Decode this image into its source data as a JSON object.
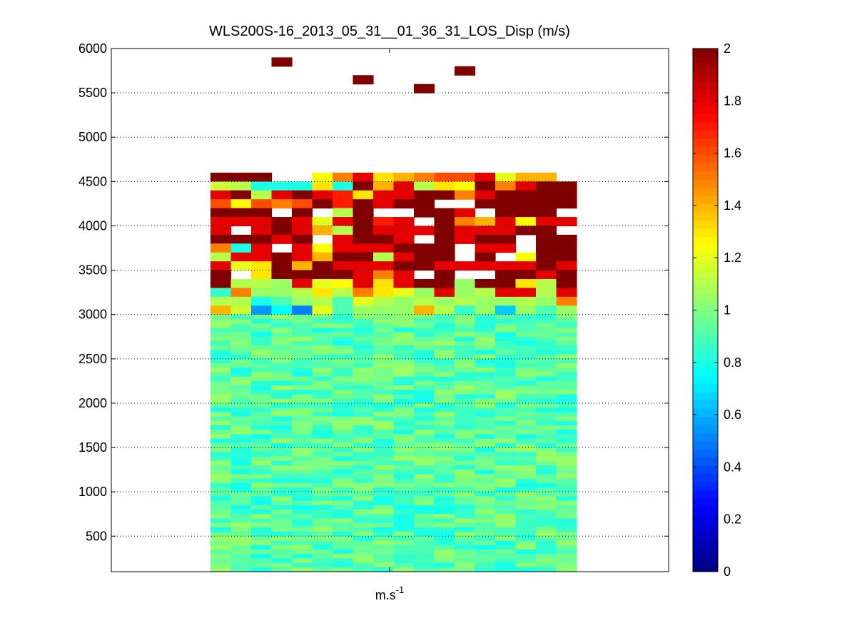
{
  "chart_data": {
    "type": "heatmap",
    "title": "WLS200S-16_2013_05_31__01_36_31_LOS_Disp (m/s)",
    "xlabel": "m.s",
    "xlabel_superscript": "-1",
    "ylabel": "",
    "ylim": [
      100,
      6000
    ],
    "yticks": [
      500,
      1000,
      1500,
      2000,
      2500,
      3000,
      3500,
      4000,
      4500,
      5000,
      5500,
      6000
    ],
    "grid": "horizontal-dotted",
    "colorbar": {
      "colormap": "jet",
      "clim": [
        0,
        2
      ],
      "ticks": [
        0,
        0.2,
        0.4,
        0.6,
        0.8,
        1,
        1.2,
        1.4,
        1.6,
        1.8,
        2
      ]
    },
    "columns": 18,
    "data_top": 4600,
    "row_height": 100,
    "no_data_color": "#ffffff",
    "upper_rows": [
      [
        2,
        2,
        2,
        null,
        null,
        1.25,
        1.5,
        1.8,
        1.3,
        1.4,
        1.5,
        1.6,
        1.6,
        1.8,
        1.2,
        1.4,
        1.4,
        null
      ],
      [
        1.15,
        1.1,
        0.8,
        0.8,
        0.8,
        1.3,
        0.8,
        2,
        1.4,
        1.8,
        1.1,
        1.3,
        1.25,
        2,
        1.5,
        1.8,
        2,
        2
      ],
      [
        1.8,
        2,
        1.1,
        1.8,
        2,
        1.8,
        1.7,
        1.3,
        1.8,
        1.8,
        2,
        2,
        1.5,
        1.8,
        2,
        2,
        2,
        2
      ],
      [
        1.6,
        1.25,
        1.6,
        1.5,
        1.6,
        2,
        1.7,
        2,
        1.8,
        2,
        2,
        null,
        null,
        2,
        2,
        2,
        2,
        2
      ],
      [
        2,
        2,
        2,
        null,
        2,
        null,
        1.1,
        2,
        null,
        null,
        2,
        2,
        1.8,
        null,
        2,
        2,
        2,
        null
      ],
      [
        1.8,
        1.8,
        1.8,
        2,
        1.8,
        1.2,
        1.8,
        2,
        1.7,
        1.8,
        null,
        2,
        1.5,
        1.4,
        1.8,
        1.25,
        1.8,
        1.8
      ],
      [
        1.8,
        null,
        1.8,
        2,
        1.8,
        1.4,
        1.1,
        2,
        1.8,
        1.8,
        1.8,
        2,
        1.8,
        1.8,
        1.8,
        2,
        2,
        null
      ],
      [
        2,
        2,
        2,
        1.8,
        2,
        null,
        1.8,
        2,
        2,
        1.8,
        null,
        2,
        1.8,
        2,
        2,
        null,
        2,
        2
      ],
      [
        1.5,
        0.8,
        1.8,
        null,
        1.8,
        1.25,
        1.8,
        1.8,
        1.8,
        2,
        2,
        2,
        null,
        1.8,
        1.8,
        null,
        2,
        2
      ],
      [
        1.1,
        1.8,
        1.8,
        2,
        1.8,
        1.4,
        2,
        2,
        1.1,
        1.8,
        2,
        2,
        null,
        2,
        null,
        1.25,
        2,
        2
      ],
      [
        1.8,
        1.2,
        1.3,
        2,
        1.4,
        2,
        1.8,
        1.8,
        1.8,
        2,
        2,
        1.8,
        1.8,
        1.8,
        1.8,
        1.8,
        2,
        1.8
      ],
      [
        2,
        null,
        1.3,
        2,
        2,
        2,
        2,
        1.8,
        1.5,
        1.8,
        null,
        2,
        null,
        null,
        2,
        2,
        1.8,
        2
      ],
      [
        2,
        1.1,
        1.1,
        1.05,
        1.8,
        1.2,
        1.25,
        1.8,
        1.3,
        1.8,
        2,
        2,
        1.05,
        2,
        2,
        1.3,
        1.1,
        2
      ],
      [
        0.85,
        1.5,
        1.05,
        1.05,
        1.1,
        1.3,
        1.1,
        1.5,
        1.3,
        1.2,
        1.05,
        1.8,
        1.05,
        1.1,
        1.8,
        1.8,
        1.1,
        1.8
      ],
      [
        1.1,
        1.1,
        0.8,
        0.9,
        1.05,
        1.1,
        0.9,
        1.2,
        1.1,
        1.05,
        1.1,
        1.05,
        1.1,
        1.05,
        1.05,
        1.1,
        1.05,
        1.5
      ],
      [
        1.4,
        1.15,
        0.55,
        0.75,
        0.5,
        1.2,
        0.9,
        1.05,
        1.05,
        1.05,
        1.4,
        1.1,
        0.85,
        1.05,
        0.65,
        1.05,
        0.9,
        1.05
      ]
    ],
    "lower_base_value": 0.92,
    "lower_variation": 0.14,
    "lower_rows_from": 3000,
    "isolated_points": [
      {
        "col": 3,
        "y": 5850,
        "value": 2
      },
      {
        "col": 7,
        "y": 5650,
        "value": 2
      },
      {
        "col": 10,
        "y": 5550,
        "value": 2
      },
      {
        "col": 12,
        "y": 5750,
        "value": 2
      }
    ]
  }
}
